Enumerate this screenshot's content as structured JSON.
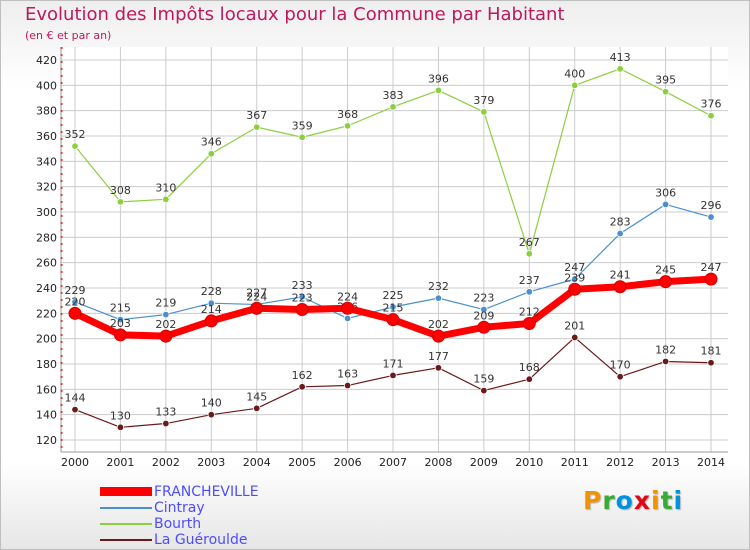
{
  "title": "Evolution des Impôts locaux pour la Commune par Habitant",
  "subtitle": "(en € et par an)",
  "logo": {
    "text": "Proxiti",
    "letters": [
      {
        "ch": "P",
        "color": "#f39200"
      },
      {
        "ch": "r",
        "color": "#3aa935"
      },
      {
        "ch": "o",
        "color": "#0093dd"
      },
      {
        "ch": "x",
        "color": "#e30613"
      },
      {
        "ch": "i",
        "color": "#f39200"
      },
      {
        "ch": "t",
        "color": "#3aa935"
      },
      {
        "ch": "i",
        "color": "#0093dd"
      }
    ]
  },
  "chart_data": {
    "type": "line",
    "title": "Evolution des Impôts locaux pour la Commune par Habitant",
    "subtitle": "(en € et par an)",
    "xlabel": "",
    "ylabel": "",
    "ylim": [
      120,
      420
    ],
    "ytick_step": 20,
    "ytick_labels": [
      "120",
      "140",
      "160",
      "180",
      "200",
      "220",
      "240",
      "260",
      "280",
      "300",
      "320",
      "340",
      "360",
      "380",
      "400",
      "420"
    ],
    "x": [
      "2000",
      "2001",
      "2002",
      "2003",
      "2004",
      "2005",
      "2006",
      "2007",
      "2008",
      "2009",
      "2010",
      "2011",
      "2012",
      "2013",
      "2014"
    ],
    "grid": true,
    "legend_position": "bottom-left",
    "series": [
      {
        "name": "La Guéroulde",
        "color": "#6b1a1a",
        "weight": "thin",
        "values": [
          144,
          130,
          133,
          140,
          145,
          162,
          163,
          171,
          177,
          159,
          168,
          201,
          170,
          182,
          181
        ],
        "labels": [
          "144",
          "130",
          "133",
          "140",
          "145",
          "162",
          "163",
          "171",
          "177",
          "159",
          "168",
          "201",
          "170",
          "182",
          "181"
        ]
      },
      {
        "name": "Bourth",
        "color": "#8ccf3e",
        "weight": "thin",
        "values": [
          352,
          308,
          310,
          346,
          367,
          359,
          368,
          383,
          396,
          379,
          267,
          400,
          413,
          395,
          376
        ],
        "labels": [
          "352",
          "308",
          "310",
          "346",
          "367",
          "359",
          "368",
          "383",
          "396",
          "379",
          "267",
          "400",
          "413",
          "395",
          "376"
        ]
      },
      {
        "name": "Cintray",
        "color": "#4a90d0",
        "weight": "thin",
        "values": [
          229,
          215,
          219,
          228,
          227,
          233,
          216,
          225,
          232,
          223,
          237,
          247,
          283,
          306,
          296
        ],
        "labels": [
          "229",
          "215",
          "219",
          "228",
          "227",
          "233",
          "216",
          "225",
          "232",
          "223",
          "237",
          "247",
          "283",
          "306",
          "296"
        ]
      },
      {
        "name": "FRANCHEVILLE",
        "color": "#ff0000",
        "weight": "thick",
        "values": [
          220,
          203,
          202,
          214,
          224,
          223,
          224,
          215,
          202,
          209,
          212,
          239,
          241,
          245,
          247
        ],
        "labels": [
          "220",
          "203",
          "202",
          "214",
          "224",
          "223",
          "224",
          "215",
          "202",
          "209",
          "212",
          "239",
          "241",
          "245",
          "247"
        ]
      }
    ]
  },
  "legend": [
    {
      "label": "FRANCHEVILLE",
      "color": "#ff0000",
      "thick": true
    },
    {
      "label": "Cintray",
      "color": "#4a90d0",
      "thick": false
    },
    {
      "label": "Bourth",
      "color": "#8ccf3e",
      "thick": false
    },
    {
      "label": "La Guéroulde",
      "color": "#6b1a1a",
      "thick": false
    }
  ],
  "colors": {
    "title": "#c0185b",
    "legend_text": "#4d4dff",
    "axis": "#999999",
    "grid": "#cccccc",
    "tick_text": "#222222",
    "label_text": "#333333"
  }
}
